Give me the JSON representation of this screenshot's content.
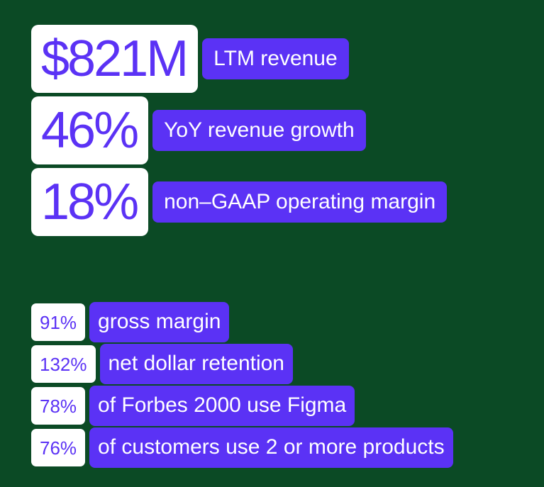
{
  "headline_stats": [
    {
      "value": "$821M",
      "label": "LTM revenue"
    },
    {
      "value": "46%",
      "label": "YoY revenue growth"
    },
    {
      "value": "18%",
      "label": "non–GAAP operating margin"
    }
  ],
  "secondary_stats": [
    {
      "value": "91%",
      "label": "gross margin"
    },
    {
      "value": "132%",
      "label": "net dollar retention"
    },
    {
      "value": "78%",
      "label": "of Forbes 2000 use Figma"
    },
    {
      "value": "76%",
      "label": "of customers use 2 or more products"
    }
  ],
  "colors": {
    "background": "#0b4a25",
    "accent": "#5b32f5",
    "value_box": "#ffffff"
  }
}
